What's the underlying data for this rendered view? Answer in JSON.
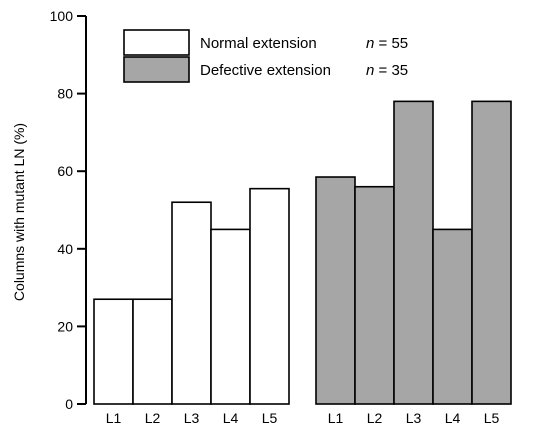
{
  "chart_data": {
    "type": "bar",
    "ylabel": "Columns with mutant LN (%)",
    "ylim": [
      0,
      100
    ],
    "yticks": [
      0,
      20,
      40,
      60,
      80,
      100
    ],
    "grid": false,
    "legend_position": "top-left",
    "groups": [
      {
        "legend_label": "Normal extension",
        "legend_n": "n = 55",
        "fill": "#ffffff",
        "categories": [
          "L1",
          "L2",
          "L3",
          "L4",
          "L5"
        ],
        "values": [
          27,
          27,
          52,
          45,
          55.5
        ]
      },
      {
        "legend_label": "Defective extension",
        "legend_n": "n = 35",
        "fill": "#a6a6a6",
        "categories": [
          "L1",
          "L2",
          "L3",
          "L4",
          "L5"
        ],
        "values": [
          58.5,
          56,
          78,
          45,
          78
        ]
      }
    ]
  }
}
